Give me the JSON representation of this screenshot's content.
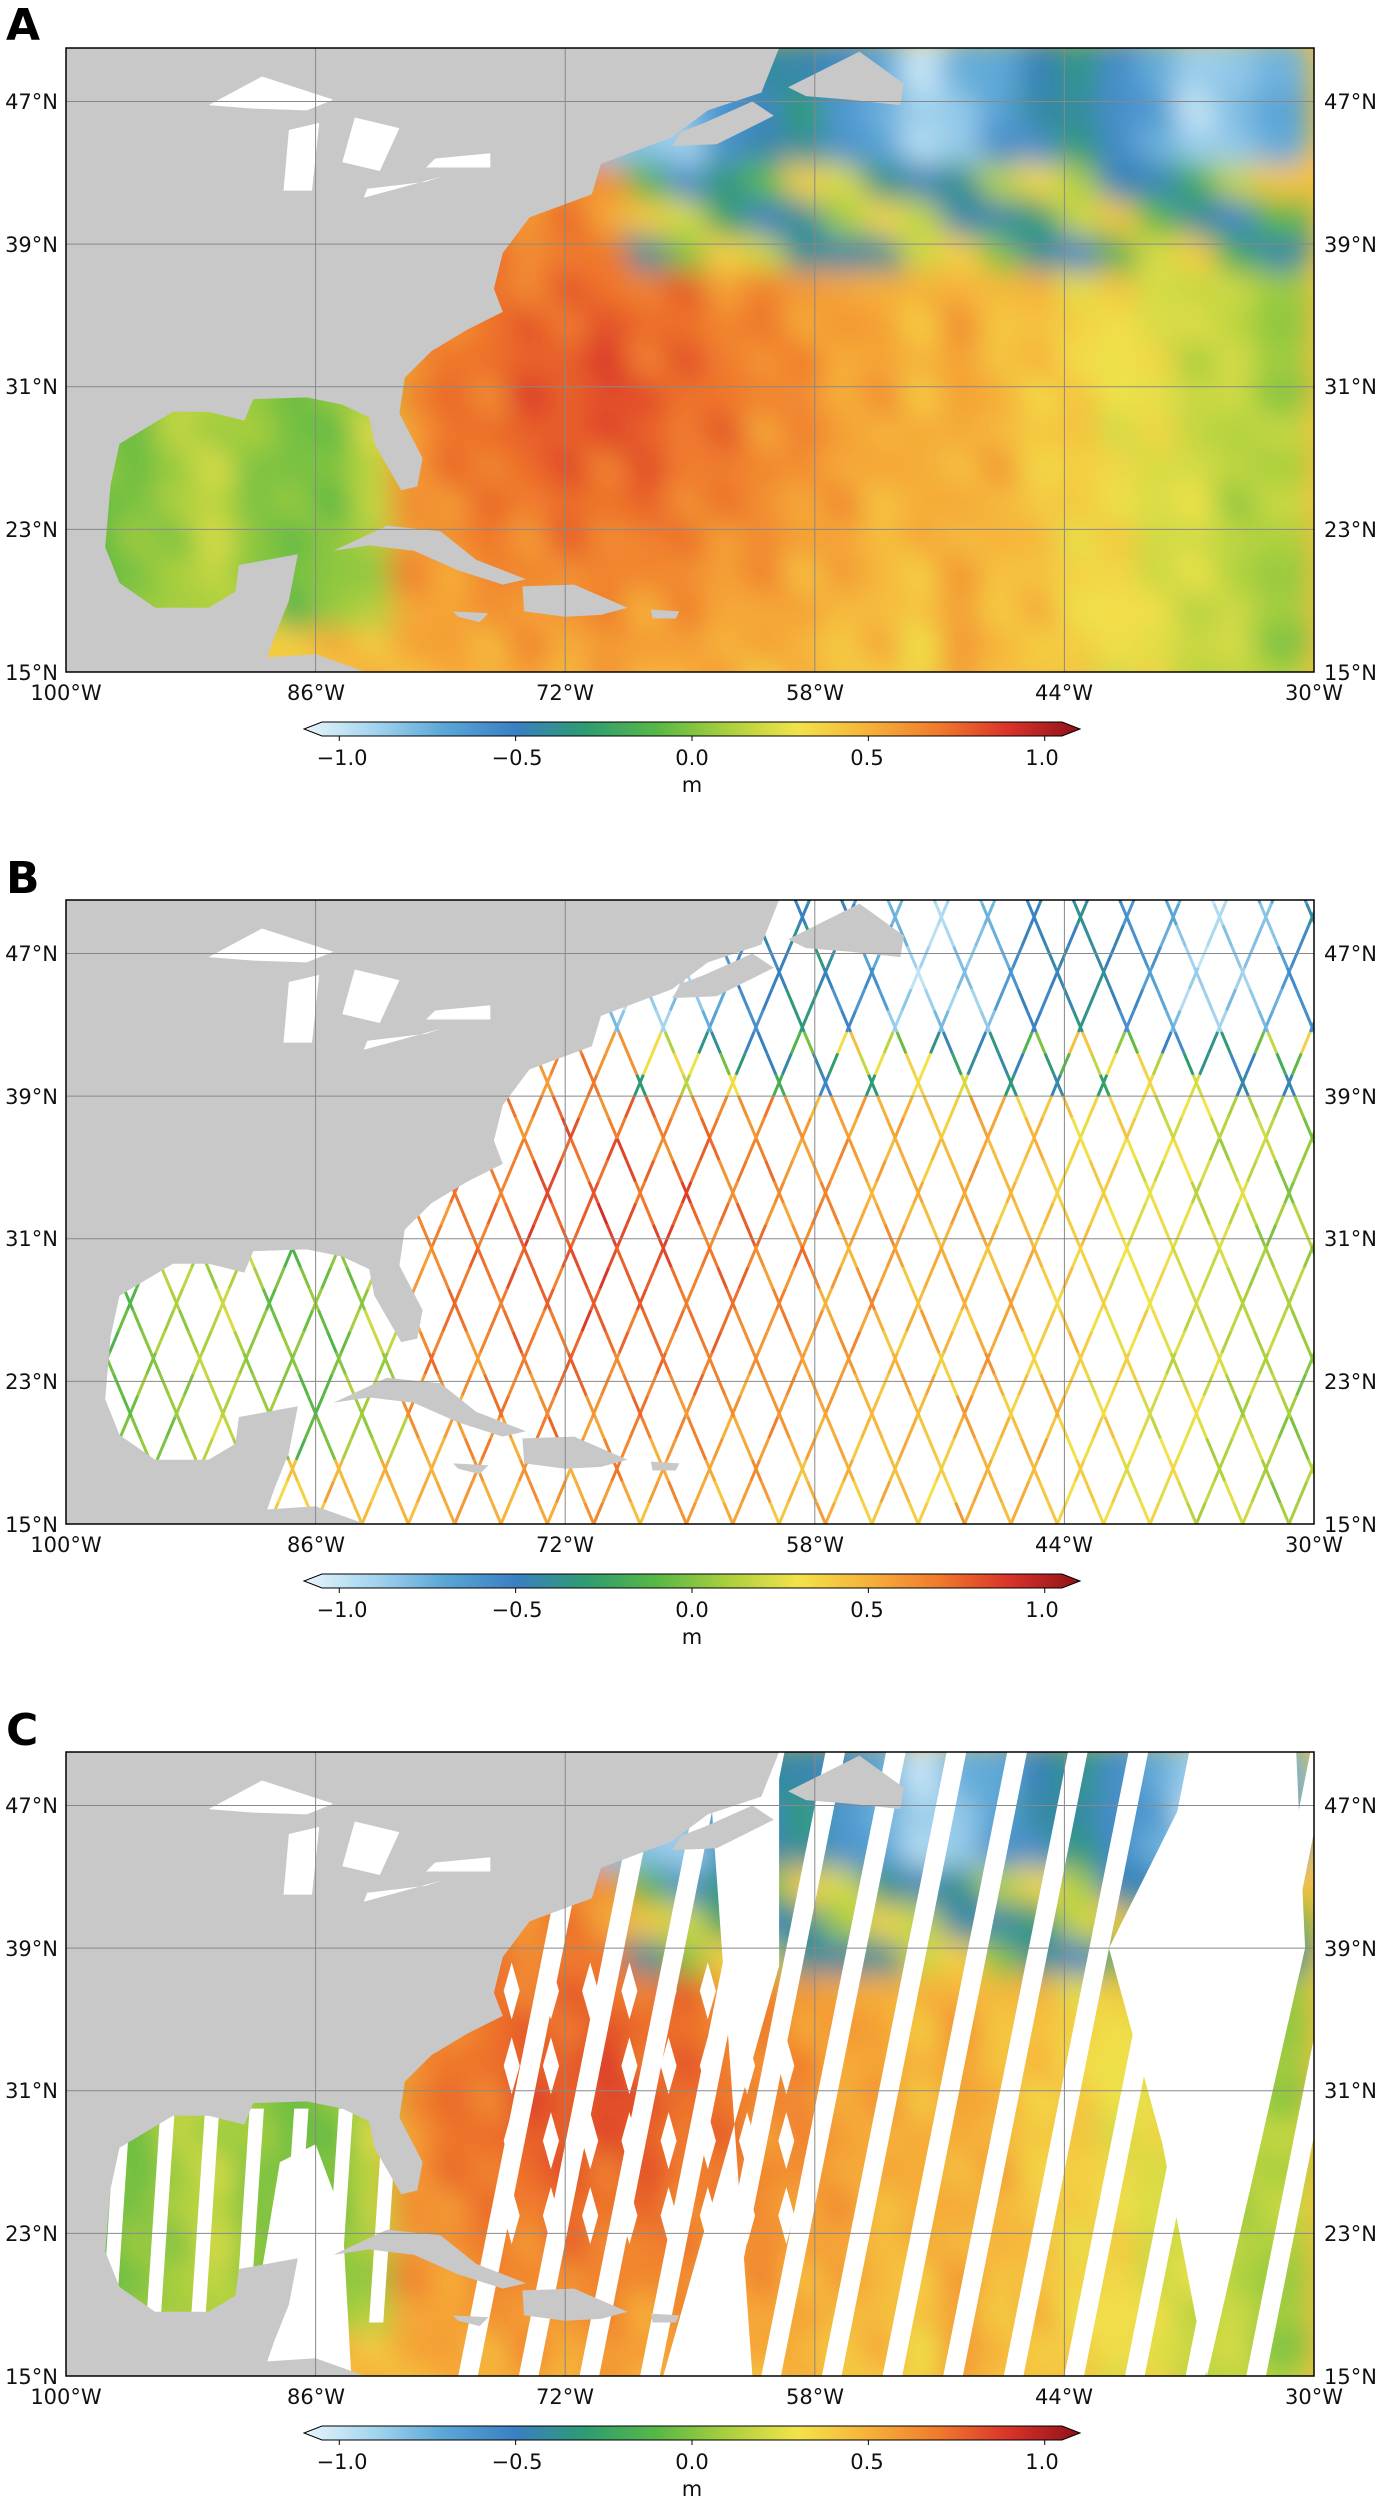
{
  "figure": {
    "colormap": [
      "#e8f6fc",
      "#a4d4ee",
      "#5aa6d6",
      "#3a7fc2",
      "#2e9c70",
      "#58b845",
      "#aacf3e",
      "#f2e34a",
      "#f6b23a",
      "#f07a2c",
      "#d9322a",
      "#8e1118"
    ],
    "land_color": "#c8c8c8",
    "grid_color": "#888888",
    "white": "#ffffff"
  },
  "colorbar": {
    "ticks": [
      "−1.0",
      "−0.5",
      "0.0",
      "0.5",
      "1.0"
    ],
    "tick_values": [
      -1.0,
      -0.5,
      0.0,
      0.5,
      1.0
    ],
    "range": [
      -1.1,
      1.1
    ],
    "unit": "m"
  },
  "axes": {
    "lon_ticks": [
      "100°W",
      "86°W",
      "72°W",
      "58°W",
      "44°W",
      "30°W"
    ],
    "lon_values": [
      -100,
      -86,
      -72,
      -58,
      -44,
      -30
    ],
    "lat_ticks": [
      "47°N",
      "39°N",
      "31°N",
      "23°N",
      "15°N"
    ],
    "lat_values": [
      47,
      39,
      31,
      23,
      15
    ],
    "lon_range": [
      -100,
      -30
    ],
    "lat_range": [
      15,
      50
    ]
  },
  "panels": [
    {
      "letter": "A",
      "kind": "full",
      "description_short": "gridded"
    },
    {
      "letter": "B",
      "kind": "tracks",
      "description_short": "tracks"
    },
    {
      "letter": "C",
      "kind": "swaths",
      "description_short": "swaths"
    }
  ]
}
